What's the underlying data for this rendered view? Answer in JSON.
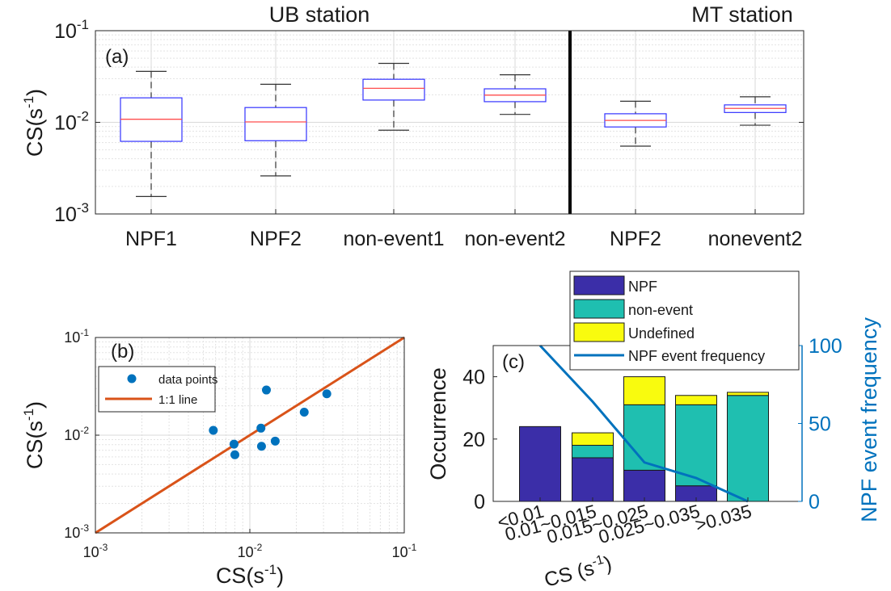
{
  "chart_data": [
    {
      "id": "a",
      "type": "box",
      "panel_label": "(a)",
      "ylabel": "CS(s",
      "ylabel_sup": "-1",
      "ylabel_close": ")",
      "yscale": "log",
      "ylim": [
        0.001,
        0.1
      ],
      "yticks": [
        {
          "base": "10",
          "exp": "-3"
        },
        {
          "base": "10",
          "exp": "-2"
        },
        {
          "base": "10",
          "exp": "-1"
        }
      ],
      "station_titles": [
        "UB station",
        "MT station"
      ],
      "categories": [
        "NPF1",
        "NPF2",
        "non-event1",
        "non-event2",
        "NPF2",
        "nonevent2"
      ],
      "boxes": [
        {
          "whisker_low": 0.00155,
          "q1": 0.0062,
          "median": 0.0108,
          "q3": 0.0185,
          "whisker_high": 0.036
        },
        {
          "whisker_low": 0.0026,
          "q1": 0.0063,
          "median": 0.0101,
          "q3": 0.0145,
          "whisker_high": 0.026
        },
        {
          "whisker_low": 0.0082,
          "q1": 0.0175,
          "median": 0.0235,
          "q3": 0.0295,
          "whisker_high": 0.044
        },
        {
          "whisker_low": 0.0122,
          "q1": 0.0168,
          "median": 0.0198,
          "q3": 0.0232,
          "whisker_high": 0.033
        },
        {
          "whisker_low": 0.0055,
          "q1": 0.0089,
          "median": 0.0105,
          "q3": 0.0124,
          "whisker_high": 0.017
        },
        {
          "whisker_low": 0.0093,
          "q1": 0.0128,
          "median": 0.0142,
          "q3": 0.0155,
          "whisker_high": 0.019
        }
      ],
      "colors": {
        "box": "#3333ff",
        "median": "#ff4d4d",
        "whisker": "#333333",
        "divider": "#000000"
      }
    },
    {
      "id": "b",
      "type": "scatter",
      "panel_label": "(b)",
      "xlabel": "CS(s",
      "xlabel_sup": "-1",
      "xlabel_close": ")",
      "ylabel": "CS(s",
      "ylabel_sup": "-1",
      "ylabel_close": ")",
      "xscale": "log",
      "yscale": "log",
      "xlim": [
        0.001,
        0.1
      ],
      "ylim": [
        0.001,
        0.1
      ],
      "ticks": [
        {
          "base": "10",
          "exp": "-3"
        },
        {
          "base": "10",
          "exp": "-2"
        },
        {
          "base": "10",
          "exp": "-1"
        }
      ],
      "points": [
        {
          "x": 0.0058,
          "y": 0.0112
        },
        {
          "x": 0.0079,
          "y": 0.0081
        },
        {
          "x": 0.008,
          "y": 0.0063
        },
        {
          "x": 0.0118,
          "y": 0.0118
        },
        {
          "x": 0.0119,
          "y": 0.0077
        },
        {
          "x": 0.0128,
          "y": 0.029
        },
        {
          "x": 0.0146,
          "y": 0.0087
        },
        {
          "x": 0.0225,
          "y": 0.0172
        },
        {
          "x": 0.0315,
          "y": 0.0265
        }
      ],
      "one_to_one": [
        [
          0.001,
          0.001
        ],
        [
          0.1,
          0.1
        ]
      ],
      "legend": [
        "data points",
        "1:1 line"
      ],
      "colors": {
        "points": "#0072bd",
        "line": "#d95319"
      }
    },
    {
      "id": "c",
      "type": "bar",
      "stacked": true,
      "panel_label": "(c)",
      "xlabel": "CS (s",
      "xlabel_sup": "-1",
      "xlabel_close": ")",
      "ylabel": "Occurrence",
      "ylabel_right": "NPF event frequency",
      "ylim": [
        0,
        50
      ],
      "yticks": [
        0,
        20,
        40
      ],
      "ylim_right": [
        0,
        100
      ],
      "yticks_right": [
        0,
        50,
        100
      ],
      "categories": [
        "<0.01",
        "0.01~0.015",
        "0.015~0.025",
        "0.025~0.035",
        ">0.035"
      ],
      "series": [
        {
          "name": "NPF",
          "values": [
            24,
            14,
            10,
            5,
            0
          ],
          "color": "#3b2ea8"
        },
        {
          "name": "non-event",
          "values": [
            0,
            4,
            21,
            26,
            34
          ],
          "color": "#1fbfb0"
        },
        {
          "name": "Undefined",
          "values": [
            0,
            4,
            9,
            3,
            1
          ],
          "color": "#f9fb0e"
        }
      ],
      "line_series": {
        "name": "NPF event frequency",
        "values": [
          100,
          64,
          25,
          15,
          0
        ],
        "color": "#0072bd"
      },
      "legend": [
        "NPF",
        "non-event",
        "Undefined",
        "NPF event frequency"
      ]
    }
  ]
}
